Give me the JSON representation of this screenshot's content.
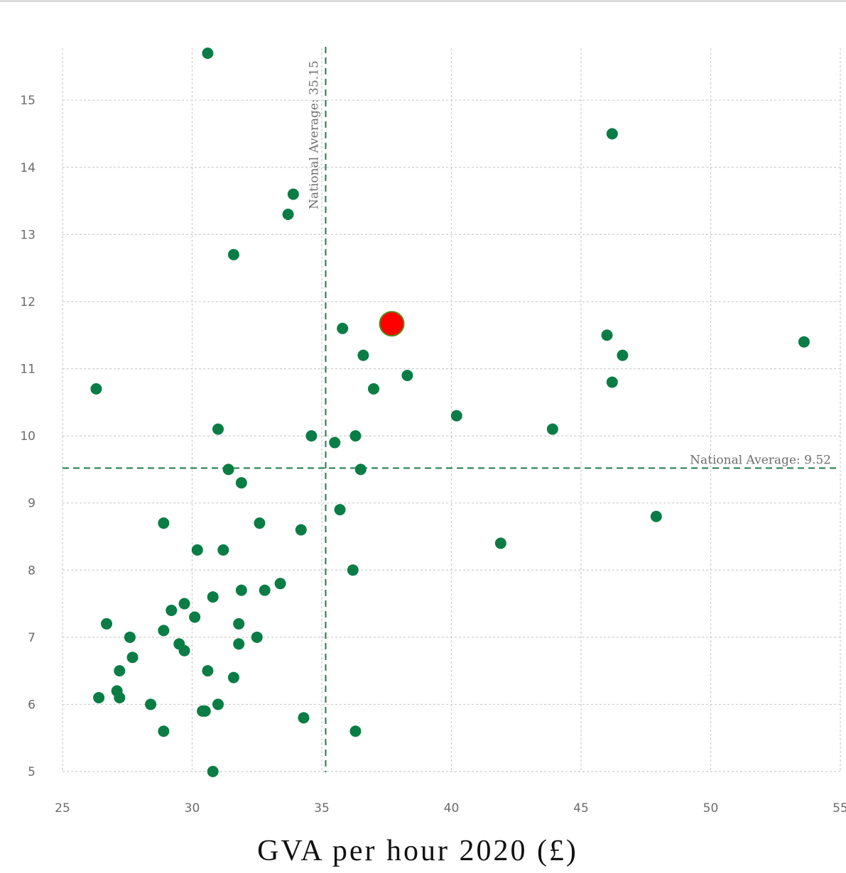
{
  "chart_data": {
    "type": "scatter",
    "xlabel": "GVA per hour 2020 (£)",
    "ylabel": "",
    "xlim": [
      25,
      55
    ],
    "ylim": [
      5,
      15.7
    ],
    "x_ticks": [
      25,
      30,
      35,
      40,
      45,
      50,
      55
    ],
    "y_ticks": [
      5,
      6,
      7,
      8,
      9,
      10,
      11,
      12,
      13,
      14,
      15
    ],
    "grid": true,
    "colors": {
      "point": "#0a7d45",
      "highlight": "#ff0000",
      "highlight_stroke": "#5a8a1a",
      "grid": "#cccccc",
      "reference_line": "#1e7a4a"
    },
    "reference_lines": [
      {
        "axis": "x",
        "value": 35.15,
        "label": "National Average: 35.15"
      },
      {
        "axis": "y",
        "value": 9.52,
        "label": "National Average: 9.52"
      }
    ],
    "highlight_point": {
      "x": 37.7,
      "y": 11.67
    },
    "points": [
      [
        30.6,
        15.7
      ],
      [
        46.2,
        14.5
      ],
      [
        33.9,
        13.6
      ],
      [
        33.7,
        13.3
      ],
      [
        31.6,
        12.7
      ],
      [
        35.8,
        11.6
      ],
      [
        46.0,
        11.5
      ],
      [
        53.6,
        11.4
      ],
      [
        36.6,
        11.2
      ],
      [
        46.6,
        11.2
      ],
      [
        38.3,
        10.9
      ],
      [
        46.2,
        10.8
      ],
      [
        26.3,
        10.7
      ],
      [
        37.0,
        10.7
      ],
      [
        40.2,
        10.3
      ],
      [
        31.0,
        10.1
      ],
      [
        43.9,
        10.1
      ],
      [
        34.6,
        10.0
      ],
      [
        36.3,
        10.0
      ],
      [
        35.5,
        9.9
      ],
      [
        31.4,
        9.5
      ],
      [
        36.5,
        9.5
      ],
      [
        31.9,
        9.3
      ],
      [
        35.7,
        8.9
      ],
      [
        47.9,
        8.8
      ],
      [
        28.9,
        8.7
      ],
      [
        32.6,
        8.7
      ],
      [
        34.2,
        8.6
      ],
      [
        41.9,
        8.4
      ],
      [
        30.2,
        8.3
      ],
      [
        31.2,
        8.3
      ],
      [
        36.2,
        8.0
      ],
      [
        33.4,
        7.8
      ],
      [
        31.9,
        7.7
      ],
      [
        32.8,
        7.7
      ],
      [
        30.8,
        7.6
      ],
      [
        29.7,
        7.5
      ],
      [
        29.2,
        7.4
      ],
      [
        30.1,
        7.3
      ],
      [
        26.7,
        7.2
      ],
      [
        31.8,
        7.2
      ],
      [
        28.9,
        7.1
      ],
      [
        27.6,
        7.0
      ],
      [
        32.5,
        7.0
      ],
      [
        29.5,
        6.9
      ],
      [
        31.8,
        6.9
      ],
      [
        29.7,
        6.8
      ],
      [
        27.7,
        6.7
      ],
      [
        27.2,
        6.5
      ],
      [
        30.6,
        6.5
      ],
      [
        31.6,
        6.4
      ],
      [
        27.1,
        6.2
      ],
      [
        26.4,
        6.1
      ],
      [
        27.2,
        6.1
      ],
      [
        28.4,
        6.0
      ],
      [
        31.0,
        6.0
      ],
      [
        30.4,
        5.9
      ],
      [
        30.5,
        5.9
      ],
      [
        34.3,
        5.8
      ],
      [
        28.9,
        5.6
      ],
      [
        36.3,
        5.6
      ],
      [
        30.8,
        5.0
      ]
    ]
  }
}
